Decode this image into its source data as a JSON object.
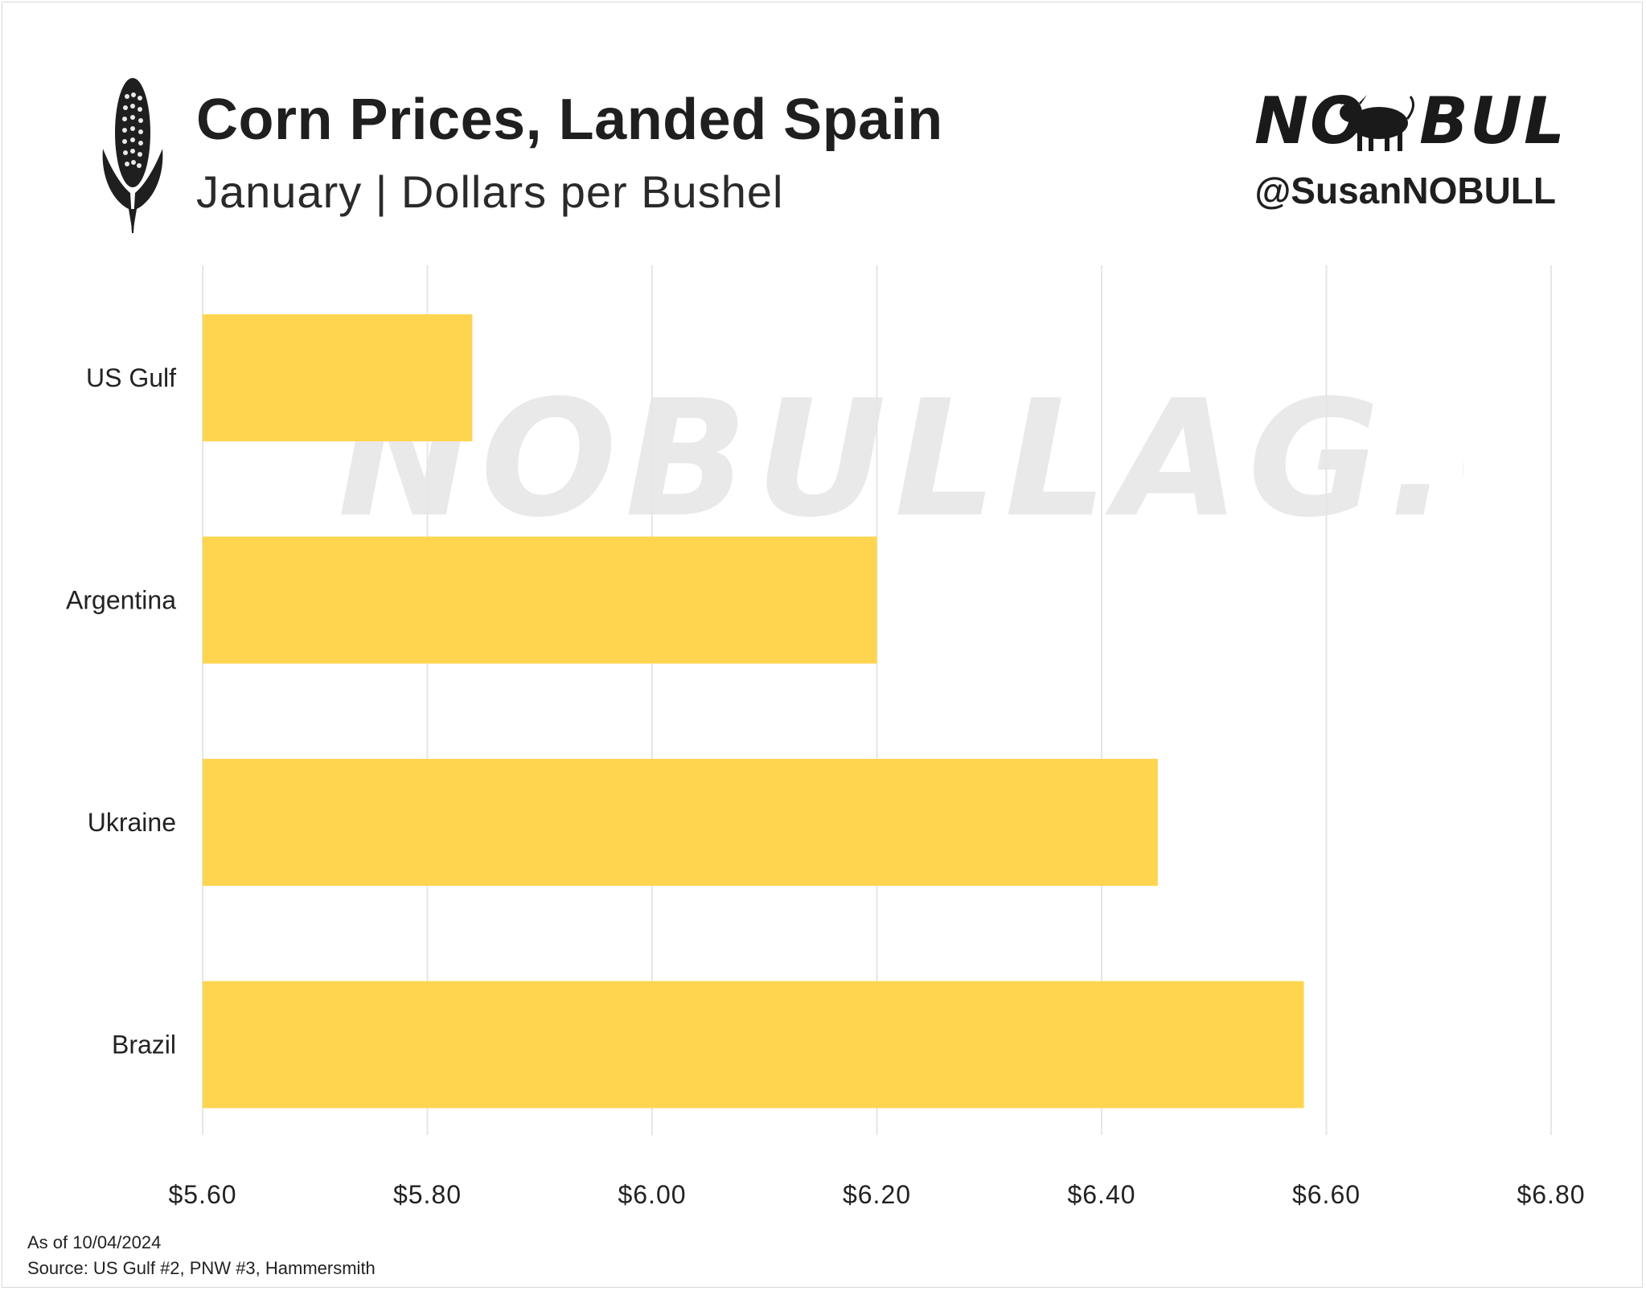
{
  "chart_data": {
    "type": "bar",
    "orientation": "horizontal",
    "title": "Corn Prices, Landed Spain",
    "subtitle": "January | Dollars per Bushel",
    "categories": [
      "US Gulf",
      "Argentina",
      "Ukraine",
      "Brazil"
    ],
    "values": [
      5.84,
      6.2,
      6.45,
      6.58
    ],
    "xlim": [
      5.6,
      6.8
    ],
    "xticks": [
      5.6,
      5.8,
      6.0,
      6.2,
      6.4,
      6.6,
      6.8
    ],
    "xtick_labels": [
      "$5.60",
      "$5.80",
      "$6.00",
      "$6.20",
      "$6.40",
      "$6.60",
      "$6.80"
    ],
    "bar_color": "#ffd54f",
    "grid": "vertical",
    "legend": "none"
  },
  "branding": {
    "logo_text_left": "NO",
    "logo_text_right": "BULL",
    "handle": "@SusanNOBULL",
    "watermark": "NOBULLAG.COM"
  },
  "footer": {
    "as_of": "As of 10/04/2024",
    "source": "Source: US Gulf #2, PNW #3, Hammersmith"
  },
  "colors": {
    "bar": "#ffd54f",
    "grid": "#e6e6e6",
    "text": "#1f1f1f",
    "watermark": "#e9e9e9"
  },
  "icons": {
    "header_icon": "corn-icon",
    "logo_icon": "bull-icon"
  }
}
